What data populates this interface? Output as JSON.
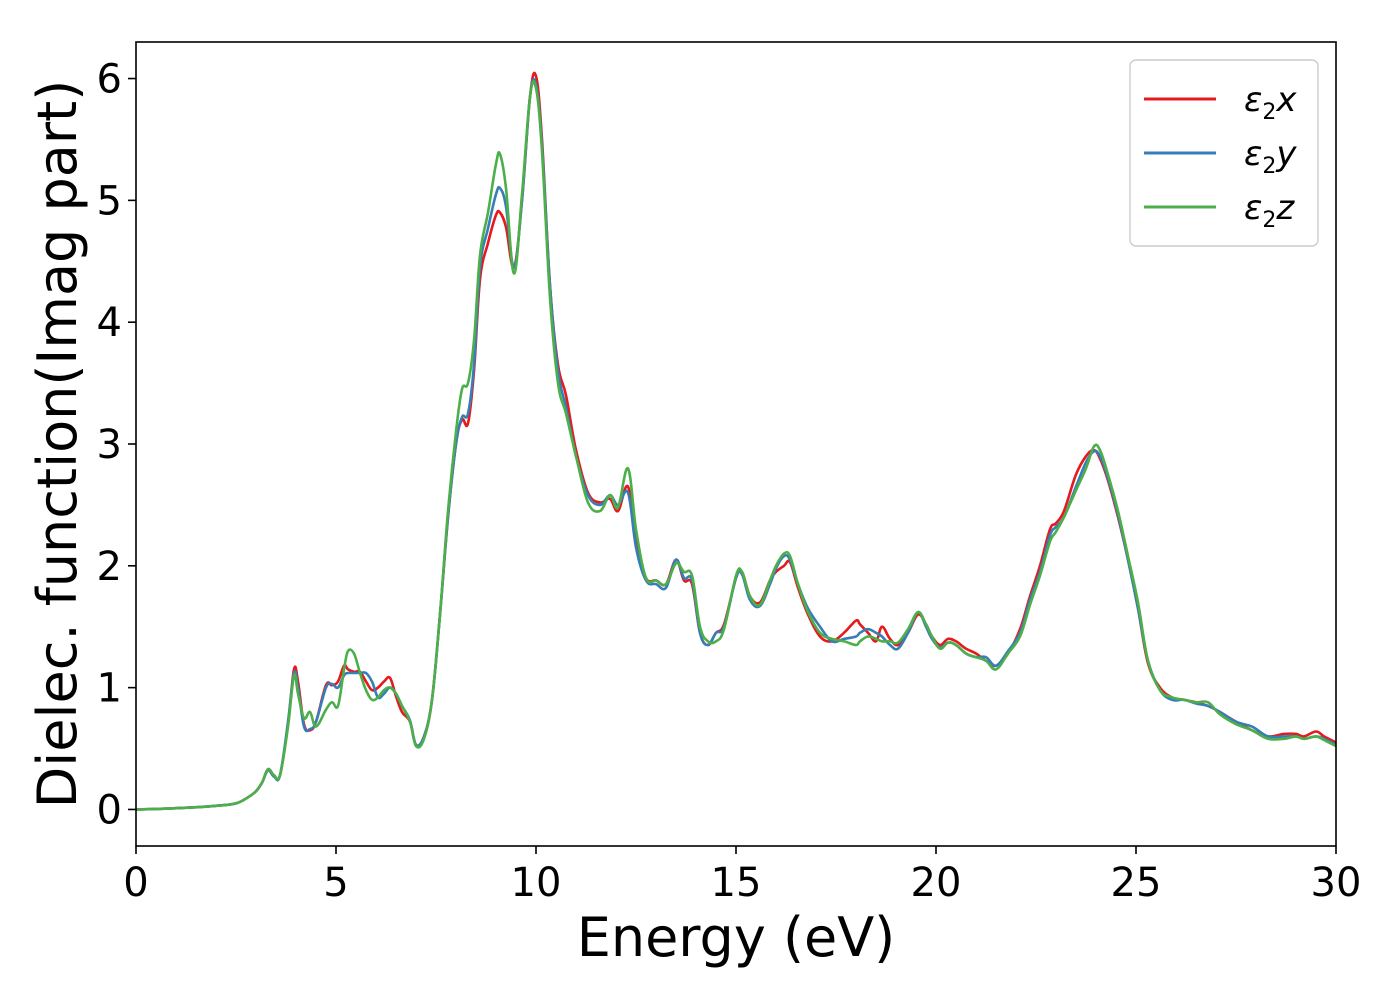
{
  "chart_data": {
    "type": "line",
    "title": "",
    "xlabel": "Energy (eV)",
    "ylabel": "Dielec. function(Imag part)",
    "xlim": [
      0,
      30
    ],
    "ylim": [
      -0.3,
      6.3
    ],
    "xticks": [
      0,
      5,
      10,
      15,
      20,
      25,
      30
    ],
    "yticks": [
      0,
      1,
      2,
      3,
      4,
      5,
      6
    ],
    "grid": false,
    "legend_position": "top-right",
    "series": [
      {
        "name": "ε2x",
        "legend": {
          "base": "ε",
          "sub": "2",
          "suffix": "x"
        },
        "color": "#e41a1c",
        "x": [
          0,
          1,
          2,
          2.5,
          2.8,
          3.0,
          3.15,
          3.3,
          3.45,
          3.6,
          3.8,
          3.95,
          4.05,
          4.2,
          4.35,
          4.5,
          4.75,
          4.9,
          5.05,
          5.2,
          5.3,
          5.45,
          5.6,
          5.75,
          5.9,
          6.05,
          6.2,
          6.35,
          6.5,
          6.65,
          6.85,
          7.0,
          7.2,
          7.4,
          7.6,
          7.8,
          8.0,
          8.15,
          8.3,
          8.45,
          8.6,
          8.8,
          9.0,
          9.1,
          9.25,
          9.45,
          9.65,
          9.85,
          10.0,
          10.15,
          10.35,
          10.55,
          10.75,
          11.0,
          11.3,
          11.6,
          11.85,
          12.05,
          12.3,
          12.5,
          12.75,
          13.0,
          13.25,
          13.5,
          13.7,
          13.9,
          14.1,
          14.3,
          14.5,
          14.7,
          15.0,
          15.15,
          15.35,
          15.6,
          15.85,
          16.0,
          16.2,
          16.35,
          16.55,
          16.8,
          17.1,
          17.4,
          17.7,
          18.0,
          18.1,
          18.3,
          18.5,
          18.65,
          18.85,
          19.05,
          19.3,
          19.55,
          19.75,
          19.9,
          20.1,
          20.3,
          20.5,
          20.75,
          21.0,
          21.25,
          21.5,
          21.8,
          22.1,
          22.35,
          22.6,
          22.85,
          23.0,
          23.2,
          23.5,
          23.75,
          23.95,
          24.1,
          24.3,
          24.55,
          24.8,
          25.05,
          25.3,
          25.6,
          25.9,
          26.2,
          26.5,
          26.8,
          27.1,
          27.5,
          27.9,
          28.3,
          28.7,
          29.0,
          29.2,
          29.5,
          29.7,
          30
        ],
        "y": [
          0,
          0.01,
          0.03,
          0.05,
          0.1,
          0.15,
          0.22,
          0.33,
          0.28,
          0.28,
          0.7,
          1.15,
          1.05,
          0.7,
          0.65,
          0.72,
          1.02,
          1.02,
          1.05,
          1.18,
          1.15,
          1.13,
          1.13,
          1.05,
          0.98,
          1.0,
          1.05,
          1.08,
          0.93,
          0.8,
          0.72,
          0.53,
          0.6,
          0.9,
          1.6,
          2.4,
          3.0,
          3.2,
          3.17,
          3.6,
          4.35,
          4.65,
          4.88,
          4.9,
          4.78,
          4.45,
          5.0,
          5.85,
          6.02,
          5.5,
          4.3,
          3.65,
          3.4,
          2.95,
          2.6,
          2.52,
          2.55,
          2.45,
          2.65,
          2.2,
          1.9,
          1.88,
          1.85,
          2.05,
          1.88,
          1.85,
          1.45,
          1.35,
          1.45,
          1.52,
          1.9,
          1.95,
          1.75,
          1.7,
          1.88,
          1.95,
          2.0,
          2.03,
          1.82,
          1.6,
          1.42,
          1.38,
          1.45,
          1.55,
          1.52,
          1.45,
          1.38,
          1.5,
          1.4,
          1.35,
          1.45,
          1.6,
          1.52,
          1.42,
          1.35,
          1.4,
          1.38,
          1.32,
          1.28,
          1.22,
          1.18,
          1.28,
          1.48,
          1.75,
          2.0,
          2.3,
          2.35,
          2.45,
          2.75,
          2.9,
          2.95,
          2.88,
          2.7,
          2.4,
          2.05,
          1.65,
          1.2,
          1.0,
          0.92,
          0.9,
          0.88,
          0.85,
          0.8,
          0.72,
          0.65,
          0.6,
          0.62,
          0.62,
          0.6,
          0.64,
          0.6,
          0.55
        ]
      },
      {
        "name": "ε2y",
        "legend": {
          "base": "ε",
          "sub": "2",
          "suffix": "y"
        },
        "color": "#377eb8",
        "x": [
          0,
          1,
          2,
          2.5,
          2.8,
          3.0,
          3.15,
          3.3,
          3.45,
          3.6,
          3.8,
          3.95,
          4.05,
          4.2,
          4.35,
          4.5,
          4.75,
          4.9,
          5.05,
          5.2,
          5.3,
          5.45,
          5.6,
          5.75,
          5.9,
          6.05,
          6.2,
          6.35,
          6.5,
          6.65,
          6.85,
          7.0,
          7.2,
          7.4,
          7.6,
          7.8,
          8.0,
          8.15,
          8.3,
          8.45,
          8.6,
          8.8,
          9.0,
          9.1,
          9.25,
          9.45,
          9.65,
          9.85,
          10.0,
          10.15,
          10.35,
          10.55,
          10.75,
          11.0,
          11.3,
          11.6,
          11.85,
          12.05,
          12.3,
          12.5,
          12.75,
          13.0,
          13.25,
          13.5,
          13.7,
          13.9,
          14.1,
          14.3,
          14.5,
          14.7,
          15.0,
          15.15,
          15.35,
          15.6,
          15.85,
          16.0,
          16.2,
          16.35,
          16.55,
          16.8,
          17.1,
          17.4,
          17.7,
          18.0,
          18.1,
          18.3,
          18.5,
          18.65,
          18.85,
          19.05,
          19.3,
          19.55,
          19.75,
          19.9,
          20.1,
          20.3,
          20.5,
          20.75,
          21.0,
          21.25,
          21.5,
          21.8,
          22.1,
          22.35,
          22.6,
          22.85,
          23.0,
          23.2,
          23.5,
          23.75,
          23.95,
          24.1,
          24.3,
          24.55,
          24.8,
          25.05,
          25.3,
          25.6,
          25.9,
          26.2,
          26.5,
          26.8,
          27.1,
          27.5,
          27.9,
          28.3,
          28.7,
          29.0,
          29.2,
          29.5,
          29.7,
          30
        ],
        "y": [
          0,
          0.01,
          0.03,
          0.05,
          0.1,
          0.15,
          0.22,
          0.32,
          0.27,
          0.28,
          0.72,
          1.12,
          1.0,
          0.68,
          0.66,
          0.72,
          1.0,
          1.03,
          1.0,
          1.1,
          1.12,
          1.12,
          1.12,
          1.12,
          1.05,
          0.92,
          0.95,
          1.0,
          0.95,
          0.85,
          0.73,
          0.53,
          0.6,
          0.9,
          1.6,
          2.4,
          3.0,
          3.22,
          3.25,
          3.65,
          4.45,
          4.77,
          5.05,
          5.1,
          4.95,
          4.45,
          5.0,
          5.85,
          5.95,
          5.45,
          4.3,
          3.6,
          3.3,
          2.9,
          2.58,
          2.5,
          2.58,
          2.5,
          2.6,
          2.15,
          1.88,
          1.85,
          1.82,
          2.05,
          1.9,
          1.88,
          1.45,
          1.35,
          1.45,
          1.5,
          1.9,
          1.93,
          1.72,
          1.67,
          1.85,
          1.98,
          2.08,
          2.05,
          1.85,
          1.65,
          1.5,
          1.38,
          1.4,
          1.42,
          1.45,
          1.48,
          1.45,
          1.42,
          1.35,
          1.32,
          1.45,
          1.62,
          1.5,
          1.4,
          1.33,
          1.37,
          1.35,
          1.28,
          1.25,
          1.25,
          1.18,
          1.3,
          1.45,
          1.72,
          1.95,
          2.25,
          2.32,
          2.4,
          2.65,
          2.85,
          2.94,
          2.9,
          2.72,
          2.42,
          2.05,
          1.65,
          1.22,
          0.98,
          0.9,
          0.9,
          0.87,
          0.85,
          0.8,
          0.72,
          0.68,
          0.6,
          0.6,
          0.6,
          0.58,
          0.6,
          0.58,
          0.53
        ]
      },
      {
        "name": "ε2z",
        "legend": {
          "base": "ε",
          "sub": "2",
          "suffix": "z"
        },
        "color": "#4daf4a",
        "x": [
          0,
          1,
          2,
          2.5,
          2.8,
          3.0,
          3.15,
          3.3,
          3.45,
          3.6,
          3.8,
          3.95,
          4.05,
          4.2,
          4.35,
          4.5,
          4.75,
          4.9,
          5.05,
          5.2,
          5.3,
          5.45,
          5.6,
          5.75,
          5.9,
          6.05,
          6.2,
          6.35,
          6.5,
          6.65,
          6.85,
          7.0,
          7.2,
          7.4,
          7.6,
          7.8,
          8.0,
          8.15,
          8.3,
          8.45,
          8.6,
          8.8,
          9.0,
          9.1,
          9.25,
          9.45,
          9.65,
          9.85,
          10.0,
          10.15,
          10.35,
          10.55,
          10.75,
          11.0,
          11.3,
          11.6,
          11.85,
          12.05,
          12.3,
          12.5,
          12.75,
          13.0,
          13.25,
          13.5,
          13.7,
          13.9,
          14.1,
          14.3,
          14.5,
          14.7,
          15.0,
          15.15,
          15.35,
          15.6,
          15.85,
          16.0,
          16.2,
          16.35,
          16.55,
          16.8,
          17.1,
          17.4,
          17.7,
          18.0,
          18.1,
          18.3,
          18.5,
          18.65,
          18.85,
          19.05,
          19.3,
          19.55,
          19.75,
          19.9,
          20.1,
          20.3,
          20.5,
          20.75,
          21.0,
          21.25,
          21.5,
          21.8,
          22.1,
          22.35,
          22.6,
          22.85,
          23.0,
          23.2,
          23.5,
          23.75,
          23.95,
          24.1,
          24.3,
          24.55,
          24.8,
          25.05,
          25.3,
          25.6,
          25.9,
          26.2,
          26.5,
          26.8,
          27.1,
          27.5,
          27.9,
          28.3,
          28.7,
          29.0,
          29.2,
          29.5,
          29.7,
          30
        ],
        "y": [
          0,
          0.01,
          0.03,
          0.05,
          0.1,
          0.15,
          0.22,
          0.33,
          0.28,
          0.28,
          0.68,
          1.1,
          0.95,
          0.75,
          0.8,
          0.68,
          0.82,
          0.88,
          0.85,
          1.15,
          1.3,
          1.28,
          1.12,
          0.98,
          0.9,
          0.92,
          0.98,
          1.0,
          0.95,
          0.85,
          0.72,
          0.52,
          0.58,
          0.9,
          1.6,
          2.45,
          3.1,
          3.45,
          3.5,
          3.85,
          4.55,
          4.9,
          5.3,
          5.38,
          5.1,
          4.4,
          5.05,
          5.85,
          5.92,
          5.4,
          4.2,
          3.5,
          3.25,
          2.9,
          2.52,
          2.45,
          2.58,
          2.48,
          2.8,
          2.3,
          1.9,
          1.88,
          1.85,
          2.02,
          1.95,
          1.92,
          1.5,
          1.38,
          1.38,
          1.48,
          1.92,
          1.95,
          1.75,
          1.68,
          1.88,
          2.0,
          2.1,
          2.08,
          1.85,
          1.62,
          1.45,
          1.4,
          1.38,
          1.35,
          1.38,
          1.42,
          1.4,
          1.38,
          1.38,
          1.37,
          1.48,
          1.62,
          1.52,
          1.42,
          1.32,
          1.37,
          1.35,
          1.28,
          1.25,
          1.22,
          1.15,
          1.28,
          1.42,
          1.68,
          1.92,
          2.2,
          2.28,
          2.4,
          2.62,
          2.8,
          2.98,
          2.95,
          2.75,
          2.45,
          2.08,
          1.7,
          1.22,
          0.98,
          0.92,
          0.9,
          0.88,
          0.88,
          0.78,
          0.7,
          0.65,
          0.58,
          0.58,
          0.6,
          0.58,
          0.6,
          0.57,
          0.52
        ]
      }
    ]
  }
}
